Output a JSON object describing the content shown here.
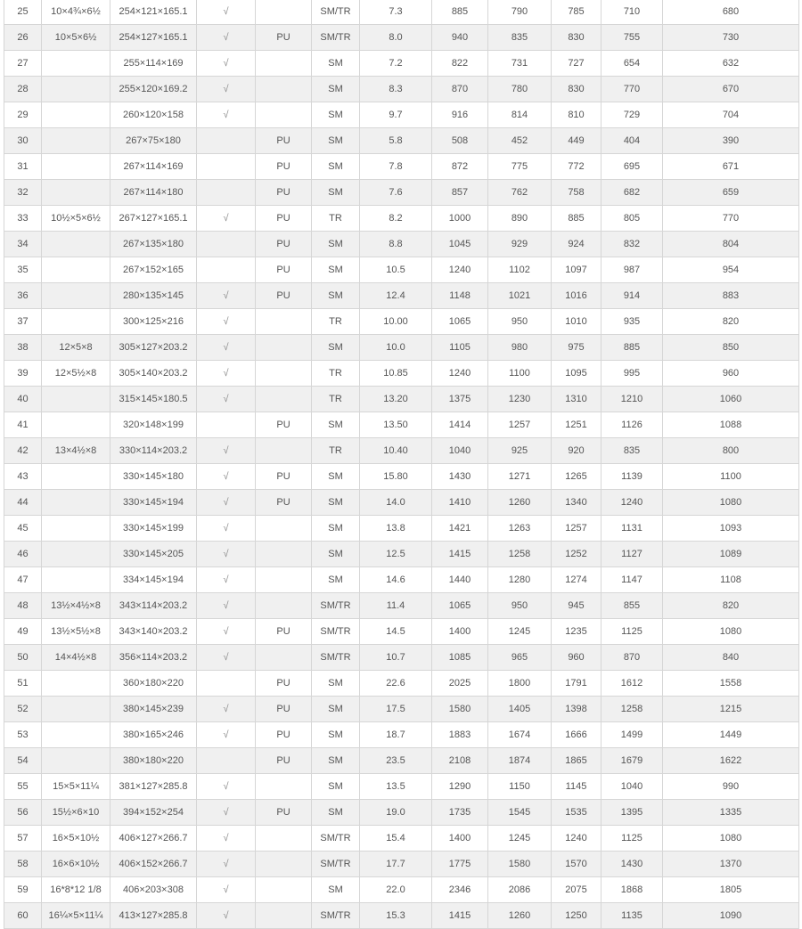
{
  "table": {
    "rows": [
      [
        "25",
        "10×4¾×6½",
        "254×121×165.1",
        "√",
        "",
        "SM/TR",
        "7.3",
        "885",
        "790",
        "785",
        "710",
        "680"
      ],
      [
        "26",
        "10×5×6½",
        "254×127×165.1",
        "√",
        "PU",
        "SM/TR",
        "8.0",
        "940",
        "835",
        "830",
        "755",
        "730"
      ],
      [
        "27",
        "",
        "255×114×169",
        "√",
        "",
        "SM",
        "7.2",
        "822",
        "731",
        "727",
        "654",
        "632"
      ],
      [
        "28",
        "",
        "255×120×169.2",
        "√",
        "",
        "SM",
        "8.3",
        "870",
        "780",
        "830",
        "770",
        "670"
      ],
      [
        "29",
        "",
        "260×120×158",
        "√",
        "",
        "SM",
        "9.7",
        "916",
        "814",
        "810",
        "729",
        "704"
      ],
      [
        "30",
        "",
        "267×75×180",
        "",
        "PU",
        "SM",
        "5.8",
        "508",
        "452",
        "449",
        "404",
        "390"
      ],
      [
        "31",
        "",
        "267×114×169",
        "",
        "PU",
        "SM",
        "7.8",
        "872",
        "775",
        "772",
        "695",
        "671"
      ],
      [
        "32",
        "",
        "267×114×180",
        "",
        "PU",
        "SM",
        "7.6",
        "857",
        "762",
        "758",
        "682",
        "659"
      ],
      [
        "33",
        "10½×5×6½",
        "267×127×165.1",
        "√",
        "PU",
        "TR",
        "8.2",
        "1000",
        "890",
        "885",
        "805",
        "770"
      ],
      [
        "34",
        "",
        "267×135×180",
        "",
        "PU",
        "SM",
        "8.8",
        "1045",
        "929",
        "924",
        "832",
        "804"
      ],
      [
        "35",
        "",
        "267×152×165",
        "",
        "PU",
        "SM",
        "10.5",
        "1240",
        "1102",
        "1097",
        "987",
        "954"
      ],
      [
        "36",
        "",
        "280×135×145",
        "√",
        "PU",
        "SM",
        "12.4",
        "1148",
        "1021",
        "1016",
        "914",
        "883"
      ],
      [
        "37",
        "",
        "300×125×216",
        "√",
        "",
        "TR",
        "10.00",
        "1065",
        "950",
        "1010",
        "935",
        "820"
      ],
      [
        "38",
        "12×5×8",
        "305×127×203.2",
        "√",
        "",
        "SM",
        "10.0",
        "1105",
        "980",
        "975",
        "885",
        "850"
      ],
      [
        "39",
        "12×5½×8",
        "305×140×203.2",
        "√",
        "",
        "TR",
        "10.85",
        "1240",
        "1100",
        "1095",
        "995",
        "960"
      ],
      [
        "40",
        "",
        "315×145×180.5",
        "√",
        "",
        "TR",
        "13.20",
        "1375",
        "1230",
        "1310",
        "1210",
        "1060"
      ],
      [
        "41",
        "",
        "320×148×199",
        "",
        "PU",
        "SM",
        "13.50",
        "1414",
        "1257",
        "1251",
        "1126",
        "1088"
      ],
      [
        "42",
        "13×4½×8",
        "330×114×203.2",
        "√",
        "",
        "TR",
        "10.40",
        "1040",
        "925",
        "920",
        "835",
        "800"
      ],
      [
        "43",
        "",
        "330×145×180",
        "√",
        "PU",
        "SM",
        "15.80",
        "1430",
        "1271",
        "1265",
        "1139",
        "1100"
      ],
      [
        "44",
        "",
        "330×145×194",
        "√",
        "PU",
        "SM",
        "14.0",
        "1410",
        "1260",
        "1340",
        "1240",
        "1080"
      ],
      [
        "45",
        "",
        "330×145×199",
        "√",
        "",
        "SM",
        "13.8",
        "1421",
        "1263",
        "1257",
        "1131",
        "1093"
      ],
      [
        "46",
        "",
        "330×145×205",
        "√",
        "",
        "SM",
        "12.5",
        "1415",
        "1258",
        "1252",
        "1127",
        "1089"
      ],
      [
        "47",
        "",
        "334×145×194",
        "√",
        "",
        "SM",
        "14.6",
        "1440",
        "1280",
        "1274",
        "1147",
        "1108"
      ],
      [
        "48",
        "13½×4½×8",
        "343×114×203.2",
        "√",
        "",
        "SM/TR",
        "11.4",
        "1065",
        "950",
        "945",
        "855",
        "820"
      ],
      [
        "49",
        "13½×5½×8",
        "343×140×203.2",
        "√",
        "PU",
        "SM/TR",
        "14.5",
        "1400",
        "1245",
        "1235",
        "1125",
        "1080"
      ],
      [
        "50",
        "14×4½×8",
        "356×114×203.2",
        "√",
        "",
        "SM/TR",
        "10.7",
        "1085",
        "965",
        "960",
        "870",
        "840"
      ],
      [
        "51",
        "",
        "360×180×220",
        "",
        "PU",
        "SM",
        "22.6",
        "2025",
        "1800",
        "1791",
        "1612",
        "1558"
      ],
      [
        "52",
        "",
        "380×145×239",
        "√",
        "PU",
        "SM",
        "17.5",
        "1580",
        "1405",
        "1398",
        "1258",
        "1215"
      ],
      [
        "53",
        "",
        "380×165×246",
        "√",
        "PU",
        "SM",
        "18.7",
        "1883",
        "1674",
        "1666",
        "1499",
        "1449"
      ],
      [
        "54",
        "",
        "380×180×220",
        "",
        "PU",
        "SM",
        "23.5",
        "2108",
        "1874",
        "1865",
        "1679",
        "1622"
      ],
      [
        "55",
        "15×5×11¼",
        "381×127×285.8",
        "√",
        "",
        "SM",
        "13.5",
        "1290",
        "1150",
        "1145",
        "1040",
        "990"
      ],
      [
        "56",
        "15½×6×10",
        "394×152×254",
        "√",
        "PU",
        "SM",
        "19.0",
        "1735",
        "1545",
        "1535",
        "1395",
        "1335"
      ],
      [
        "57",
        "16×5×10½",
        "406×127×266.7",
        "√",
        "",
        "SM/TR",
        "15.4",
        "1400",
        "1245",
        "1240",
        "1125",
        "1080"
      ],
      [
        "58",
        "16×6×10½",
        "406×152×266.7",
        "√",
        "",
        "SM/TR",
        "17.7",
        "1775",
        "1580",
        "1570",
        "1430",
        "1370"
      ],
      [
        "59",
        "16*8*12 1/8",
        "406×203×308",
        "√",
        "",
        "SM",
        "22.0",
        "2346",
        "2086",
        "2075",
        "1868",
        "1805"
      ],
      [
        "60",
        "16¼×5×11¼",
        "413×127×285.8",
        "√",
        "",
        "SM/TR",
        "15.3",
        "1415",
        "1260",
        "1250",
        "1135",
        "1090"
      ]
    ]
  }
}
